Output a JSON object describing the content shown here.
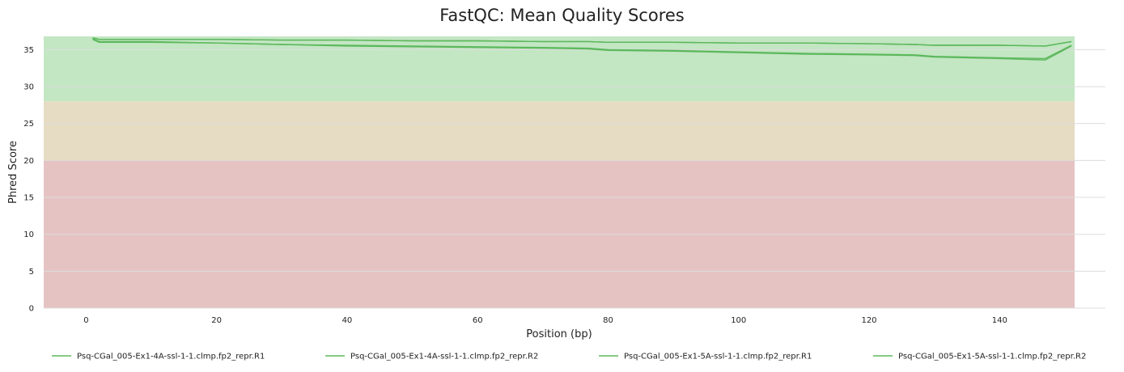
{
  "chart_data": {
    "type": "line",
    "title": "FastQC: Mean Quality Scores",
    "xlabel": "Position (bp)",
    "ylabel": "Phred Score",
    "xlim": [
      -6.5,
      151.5
    ],
    "ylim": [
      0,
      36.8
    ],
    "xticks": [
      0,
      20,
      40,
      60,
      80,
      100,
      120,
      140
    ],
    "yticks": [
      0,
      5,
      10,
      15,
      20,
      25,
      30,
      35
    ],
    "grid": true,
    "legend_position": "bottom",
    "bands": [
      {
        "from": 28,
        "to": 36.8,
        "color": "#c3e6c3"
      },
      {
        "from": 20,
        "to": 28,
        "color": "#e6dcc3"
      },
      {
        "from": 0,
        "to": 20,
        "color": "#e6c3c3"
      }
    ],
    "x": [
      1,
      2,
      5,
      10,
      20,
      30,
      40,
      50,
      60,
      70,
      77,
      80,
      90,
      100,
      110,
      120,
      127,
      130,
      140,
      147,
      151
    ],
    "series": [
      {
        "name": "Psq-CGal_005-Ex1-4A-ssl-1-1.clmp.fp2_repr.R1",
        "color": "#5cb85c",
        "values": [
          36.6,
          36.4,
          36.4,
          36.4,
          36.4,
          36.3,
          36.3,
          36.2,
          36.2,
          36.1,
          36.1,
          36.0,
          36.0,
          35.9,
          35.9,
          35.8,
          35.7,
          35.6,
          35.6,
          35.5,
          36.1
        ]
      },
      {
        "name": "Psq-CGal_005-Ex1-4A-ssl-1-1.clmp.fp2_repr.R2",
        "color": "#5cb85c",
        "values": [
          36.5,
          36.1,
          36.1,
          36.1,
          35.9,
          35.7,
          35.6,
          35.5,
          35.4,
          35.3,
          35.2,
          35.0,
          34.9,
          34.7,
          34.5,
          34.4,
          34.3,
          34.1,
          33.9,
          33.8,
          35.6
        ]
      },
      {
        "name": "Psq-CGal_005-Ex1-5A-ssl-1-1.clmp.fp2_repr.R1",
        "color": "#5cb85c",
        "values": [
          36.6,
          36.4,
          36.4,
          36.4,
          36.4,
          36.3,
          36.3,
          36.2,
          36.2,
          36.1,
          36.1,
          36.0,
          36.0,
          35.9,
          35.9,
          35.8,
          35.7,
          35.6,
          35.6,
          35.5,
          36.1
        ]
      },
      {
        "name": "Psq-CGal_005-Ex1-5A-ssl-1-1.clmp.fp2_repr.R2",
        "color": "#5cb85c",
        "values": [
          36.4,
          36.0,
          36.0,
          36.0,
          35.9,
          35.7,
          35.5,
          35.4,
          35.3,
          35.2,
          35.1,
          34.9,
          34.8,
          34.6,
          34.4,
          34.3,
          34.2,
          34.0,
          33.8,
          33.6,
          35.5
        ]
      }
    ]
  }
}
